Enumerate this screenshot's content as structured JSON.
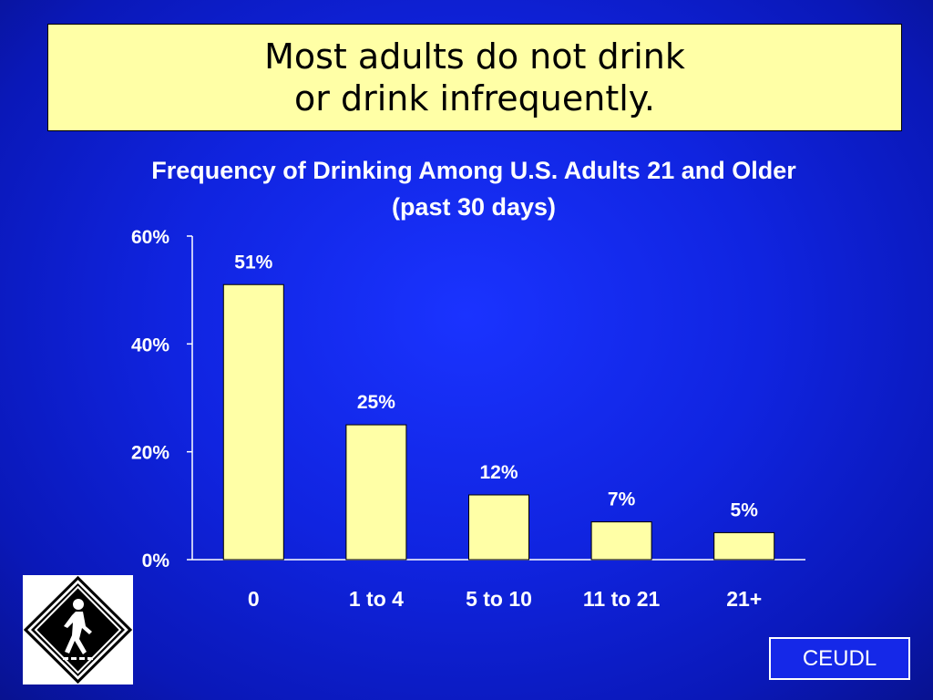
{
  "slide": {
    "title_line1": "Most adults do not drink",
    "title_line2": "or drink infrequently.",
    "footer": "CEUDL"
  },
  "colors": {
    "background": "#1024e0",
    "title_box": "#ffffa6",
    "bar_fill": "#ffffa6",
    "text": "#ffffff"
  },
  "icons": {
    "sign": "pedestrian-crossing-sign-icon"
  },
  "chart_data": {
    "type": "bar",
    "title": "Frequency of Drinking Among U.S. Adults 21 and Older",
    "subtitle": "(past 30 days)",
    "categories": [
      "0",
      "1 to 4",
      "5 to 10",
      "11 to 21",
      "21+"
    ],
    "values": [
      51,
      25,
      12,
      7,
      5
    ],
    "data_labels": [
      "51%",
      "25%",
      "12%",
      "7%",
      "5%"
    ],
    "yticks": [
      0,
      20,
      40,
      60
    ],
    "ytick_labels": [
      "0%",
      "20%",
      "40%",
      "60%"
    ],
    "ylim": [
      0,
      60
    ],
    "grid": false,
    "legend": "none"
  }
}
